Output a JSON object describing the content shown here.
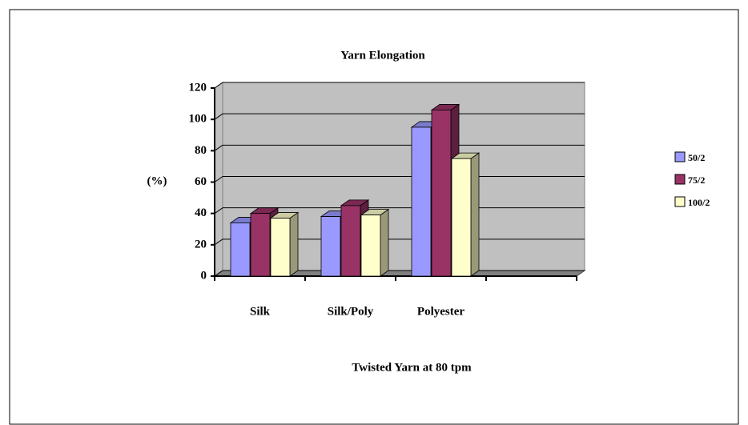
{
  "chart_data": {
    "type": "bar3d",
    "title": "Yarn Elongation",
    "x_label": "Twisted Yarn at 80 tpm",
    "y_label": "(%)",
    "categories": [
      "Silk",
      "Silk/Poly",
      "Polyester"
    ],
    "series": [
      {
        "name": "50/2",
        "color": "#9999ff",
        "values": [
          34,
          38,
          95
        ]
      },
      {
        "name": "75/2",
        "color": "#993366",
        "values": [
          40,
          45,
          106
        ]
      },
      {
        "name": "100/2",
        "color": "#ffffcc",
        "values": [
          37,
          39,
          75
        ]
      }
    ],
    "ylim": [
      0,
      120
    ],
    "yticks": [
      0,
      20,
      40,
      60,
      80,
      100,
      120
    ],
    "grid": true,
    "legend": "right"
  }
}
